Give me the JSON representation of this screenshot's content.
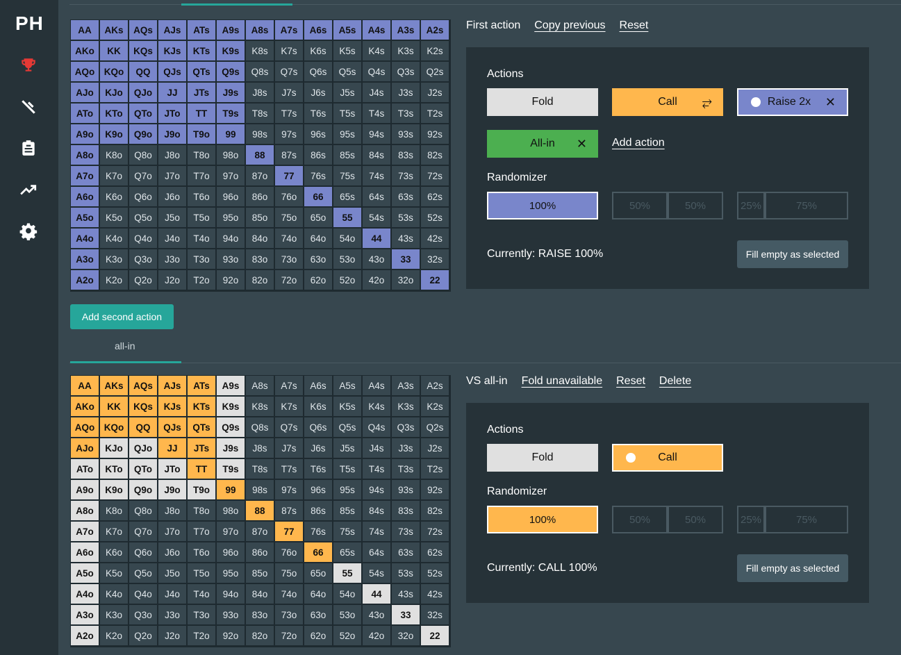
{
  "app": {
    "logo": "PH"
  },
  "sidebar": {
    "items": [
      {
        "name": "trophy-icon",
        "color": "#e53935"
      },
      {
        "name": "tools-icon",
        "color": "#ffffff"
      },
      {
        "name": "clipboard-icon",
        "color": "#ffffff"
      },
      {
        "name": "trend-icon",
        "color": "#ffffff"
      },
      {
        "name": "gear-icon",
        "color": "#ffffff"
      }
    ]
  },
  "tabs": {
    "second_tab_label": "all-in"
  },
  "ranks": [
    "A",
    "K",
    "Q",
    "J",
    "T",
    "9",
    "8",
    "7",
    "6",
    "5",
    "4",
    "3",
    "2"
  ],
  "section1": {
    "header": {
      "label": "First action",
      "copy": "Copy previous",
      "reset": "Reset"
    },
    "panel": {
      "actions_title": "Actions",
      "fold": "Fold",
      "call": "Call",
      "call_icon": "⥂",
      "raise": "Raise  2x",
      "allin": "All-in",
      "close": "✕",
      "add_action": "Add action",
      "randomizer_title": "Randomizer",
      "rand": [
        "100%",
        "50%",
        "50%",
        "25%",
        "75%"
      ],
      "current": "Currently: RAISE 100%",
      "fill": "Fill empty as selected"
    },
    "selected_hands": [
      "AA",
      "AKs",
      "AQs",
      "AJs",
      "ATs",
      "A9s",
      "A8s",
      "A7s",
      "A6s",
      "A5s",
      "A4s",
      "A3s",
      "A2s",
      "AKo",
      "KK",
      "KQs",
      "KJs",
      "KTs",
      "K9s",
      "AQo",
      "KQo",
      "QQ",
      "QJs",
      "QTs",
      "Q9s",
      "AJo",
      "KJo",
      "QJo",
      "JJ",
      "JTs",
      "J9s",
      "ATo",
      "KTo",
      "QTo",
      "JTo",
      "TT",
      "T9s",
      "A9o",
      "K9o",
      "Q9o",
      "J9o",
      "T9o",
      "99",
      "A8o",
      "88",
      "A7o",
      "77",
      "A6o",
      "66",
      "A5o",
      "55",
      "A4o",
      "44",
      "A3o",
      "33",
      "A2o",
      "22"
    ]
  },
  "add_second_action": "Add second action",
  "section2": {
    "header": {
      "label": "VS all-in",
      "fold_unavailable": "Fold unavailable",
      "reset": "Reset",
      "delete": "Delete"
    },
    "panel": {
      "actions_title": "Actions",
      "fold": "Fold",
      "call": "Call",
      "randomizer_title": "Randomizer",
      "rand": [
        "100%",
        "50%",
        "50%",
        "25%",
        "75%"
      ],
      "current": "Currently: CALL 100%",
      "fill": "Fill empty as selected"
    },
    "call_hands": [
      "AA",
      "AKs",
      "AQs",
      "AJs",
      "ATs",
      "AKo",
      "KK",
      "KQs",
      "KJs",
      "KTs",
      "AQo",
      "KQo",
      "QQ",
      "QJs",
      "QTs",
      "AJo",
      "JJ",
      "JTs",
      "TT",
      "99",
      "88",
      "77",
      "66"
    ],
    "fold_hands": [
      "A9s",
      "K9s",
      "Q9s",
      "KJo",
      "QJo",
      "J9s",
      "ATo",
      "KTo",
      "QTo",
      "JTo",
      "T9s",
      "A9o",
      "K9o",
      "Q9o",
      "J9o",
      "T9o",
      "A8o",
      "A7o",
      "A6o",
      "A5o",
      "55",
      "A4o",
      "44",
      "A3o",
      "33",
      "A2o",
      "22"
    ]
  }
}
